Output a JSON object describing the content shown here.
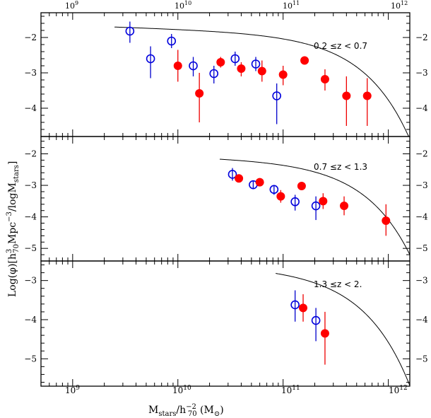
{
  "chart_data": {
    "type": "scatter",
    "xscale": "log",
    "xlim": [
      500000000.0,
      1600000000000.0
    ],
    "x_tick_labels": [
      "10",
      "10",
      "10",
      "10"
    ],
    "x_tick_exponents": [
      "9",
      "10",
      "11",
      "12"
    ],
    "xlabel": {
      "main": "M",
      "sub1": "stars",
      "mid": "/h",
      "sup": "−2",
      "sub2": "70",
      "unit": " (M",
      "sun": "⊙",
      "close": ")"
    },
    "ylabel": {
      "main": "Log(φ)[h",
      "sup": "3",
      "sub": "70",
      "mid": "Mpc",
      "sup2": "−3",
      "mid2": "/logM",
      "sub2": "stars",
      "close": "]"
    },
    "panels": [
      {
        "label": "0.2 ≤z < 0.7",
        "ylim": [
          -4.8,
          -1.3
        ],
        "yticks": [
          -2,
          -3,
          -4
        ],
        "ytick_labels": [
          "−2",
          "−3",
          "−4"
        ],
        "open_points": [
          {
            "x": 3500000000.0,
            "y": -1.82,
            "lo": -2.15,
            "hi": -1.55
          },
          {
            "x": 5500000000.0,
            "y": -2.6,
            "lo": -3.15,
            "hi": -2.25
          },
          {
            "x": 8700000000.0,
            "y": -2.1,
            "lo": -2.3,
            "hi": -1.9
          },
          {
            "x": 14000000000.0,
            "y": -2.8,
            "lo": -3.1,
            "hi": -2.55
          },
          {
            "x": 22000000000.0,
            "y": -3.02,
            "lo": -3.3,
            "hi": -2.8
          },
          {
            "x": 35000000000.0,
            "y": -2.6,
            "lo": -2.8,
            "hi": -2.4
          },
          {
            "x": 55000000000.0,
            "y": -2.75,
            "lo": -2.95,
            "hi": -2.55
          },
          {
            "x": 87000000000.0,
            "y": -3.65,
            "lo": -4.45,
            "hi": -3.3
          }
        ],
        "filled_points": [
          {
            "x": 10000000000.0,
            "y": -2.8,
            "lo": -3.25,
            "hi": -2.35
          },
          {
            "x": 16000000000.0,
            "y": -3.58,
            "lo": -4.4,
            "hi": -3.0
          },
          {
            "x": 25500000000.0,
            "y": -2.7,
            "lo": -2.85,
            "hi": -2.55
          },
          {
            "x": 40000000000.0,
            "y": -2.88,
            "lo": -3.1,
            "hi": -2.7
          },
          {
            "x": 63000000000.0,
            "y": -2.95,
            "lo": -3.25,
            "hi": -2.65
          },
          {
            "x": 100000000000.0,
            "y": -3.05,
            "lo": -3.35,
            "hi": -2.8
          },
          {
            "x": 160000000000.0,
            "y": -2.65,
            "lo": -2.75,
            "hi": -2.55
          },
          {
            "x": 250000000000.0,
            "y": -3.18,
            "lo": -3.5,
            "hi": -2.9
          },
          {
            "x": 400000000000.0,
            "y": -3.65,
            "lo": -4.5,
            "hi": -3.1
          },
          {
            "x": 630000000000.0,
            "y": -3.65,
            "lo": -4.5,
            "hi": -3.15
          }
        ],
        "curve": {
          "phi_star": 0.0055,
          "m_star": 240000000000.0,
          "alpha": -1.1,
          "x_start": 2500000000.0
        }
      },
      {
        "label": "0.7 ≤z < 1.3",
        "ylim": [
          -5.4,
          -1.45
        ],
        "yticks": [
          -2,
          -3,
          -4,
          -5
        ],
        "ytick_labels": [
          "−2",
          "−3",
          "−4",
          "−5"
        ],
        "open_points": [
          {
            "x": 33000000000.0,
            "y": -2.65,
            "lo": -2.85,
            "hi": -2.45
          },
          {
            "x": 52000000000.0,
            "y": -2.98,
            "lo": -3.1,
            "hi": -2.85
          },
          {
            "x": 82000000000.0,
            "y": -3.13,
            "lo": -3.3,
            "hi": -3.0
          },
          {
            "x": 130000000000.0,
            "y": -3.52,
            "lo": -3.8,
            "hi": -3.3
          },
          {
            "x": 205000000000.0,
            "y": -3.65,
            "lo": -4.1,
            "hi": -3.35
          }
        ],
        "filled_points": [
          {
            "x": 38000000000.0,
            "y": -2.78,
            "lo": -2.9,
            "hi": -2.65
          },
          {
            "x": 60000000000.0,
            "y": -2.9,
            "lo": -3.0,
            "hi": -2.8
          },
          {
            "x": 95000000000.0,
            "y": -3.35,
            "lo": -3.55,
            "hi": -3.15
          },
          {
            "x": 150000000000.0,
            "y": -3.02,
            "lo": -3.15,
            "hi": -2.9
          },
          {
            "x": 240000000000.0,
            "y": -3.5,
            "lo": -3.75,
            "hi": -3.25
          },
          {
            "x": 380000000000.0,
            "y": -3.65,
            "lo": -3.95,
            "hi": -3.35
          },
          {
            "x": 950000000000.0,
            "y": -4.12,
            "lo": -4.6,
            "hi": -3.6
          }
        ],
        "curve": {
          "phi_star": 0.0026,
          "m_star": 240000000000.0,
          "alpha": -1.1,
          "x_start": 25000000000.0
        }
      },
      {
        "label": "1.3 ≤z < 2.",
        "ylim": [
          -5.7,
          -2.5
        ],
        "yticks": [
          -3,
          -4,
          -5
        ],
        "ytick_labels": [
          "−3",
          "−4",
          "−5"
        ],
        "open_points": [
          {
            "x": 130000000000.0,
            "y": -3.62,
            "lo": -4.05,
            "hi": -3.25
          },
          {
            "x": 205000000000.0,
            "y": -4.02,
            "lo": -4.55,
            "hi": -3.7
          }
        ],
        "filled_points": [
          {
            "x": 155000000000.0,
            "y": -3.7,
            "lo": -4.05,
            "hi": -3.35
          },
          {
            "x": 250000000000.0,
            "y": -4.35,
            "lo": -5.15,
            "hi": -3.8
          }
        ],
        "curve": {
          "phi_star": 0.00085,
          "m_star": 240000000000.0,
          "alpha": -1.1,
          "x_start": 85000000000.0
        }
      }
    ]
  }
}
